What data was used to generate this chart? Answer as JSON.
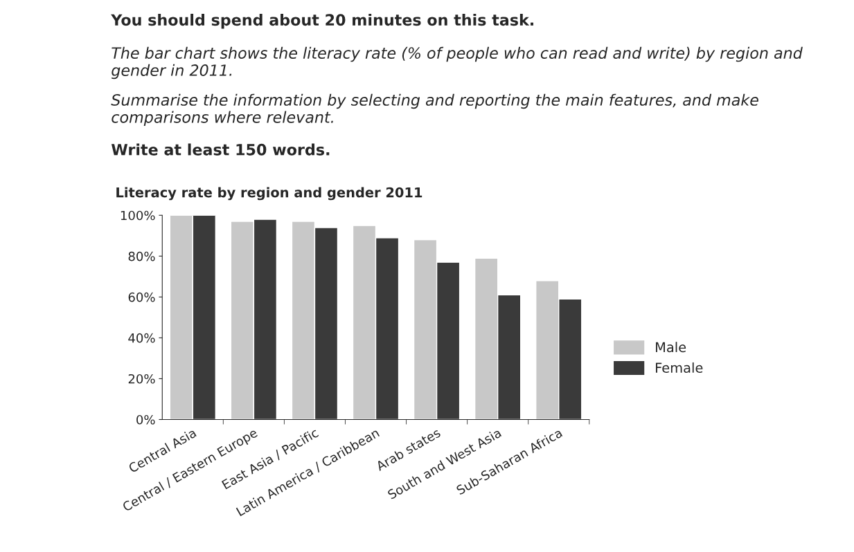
{
  "chart_data": {
    "type": "bar",
    "title": "Literacy rate by region and gender 2011",
    "annotations": [
      "You should spend about 20 minutes on this task.",
      "The bar chart shows the literacy rate (% of people who can read and write) by region and gender in 2011.",
      "Summarise the information by selecting and reporting the main features, and make comparisons where relevant.",
      "Write at least 150 words."
    ],
    "categories": [
      "Central Asia",
      "Central / Eastern Europe",
      "East Asia / Pacific",
      "Latin America / Caribbean",
      "Arab states",
      "South and West Asia",
      "Sub-Saharan Africa"
    ],
    "series": [
      {
        "name": "Male",
        "color": "#c8c8c8",
        "values": [
          100,
          97,
          97,
          95,
          88,
          79,
          68
        ]
      },
      {
        "name": "Female",
        "color": "#3a3a3a",
        "values": [
          100,
          98,
          94,
          89,
          77,
          61,
          59
        ]
      }
    ],
    "ylim": [
      0,
      100
    ],
    "yticks": [
      {
        "value": 0,
        "label": "0%"
      },
      {
        "value": 20,
        "label": "20%"
      },
      {
        "value": 40,
        "label": "40%"
      },
      {
        "value": 60,
        "label": "60%"
      },
      {
        "value": 80,
        "label": "80%"
      },
      {
        "value": 100,
        "label": "100%"
      }
    ],
    "legend": "right"
  }
}
